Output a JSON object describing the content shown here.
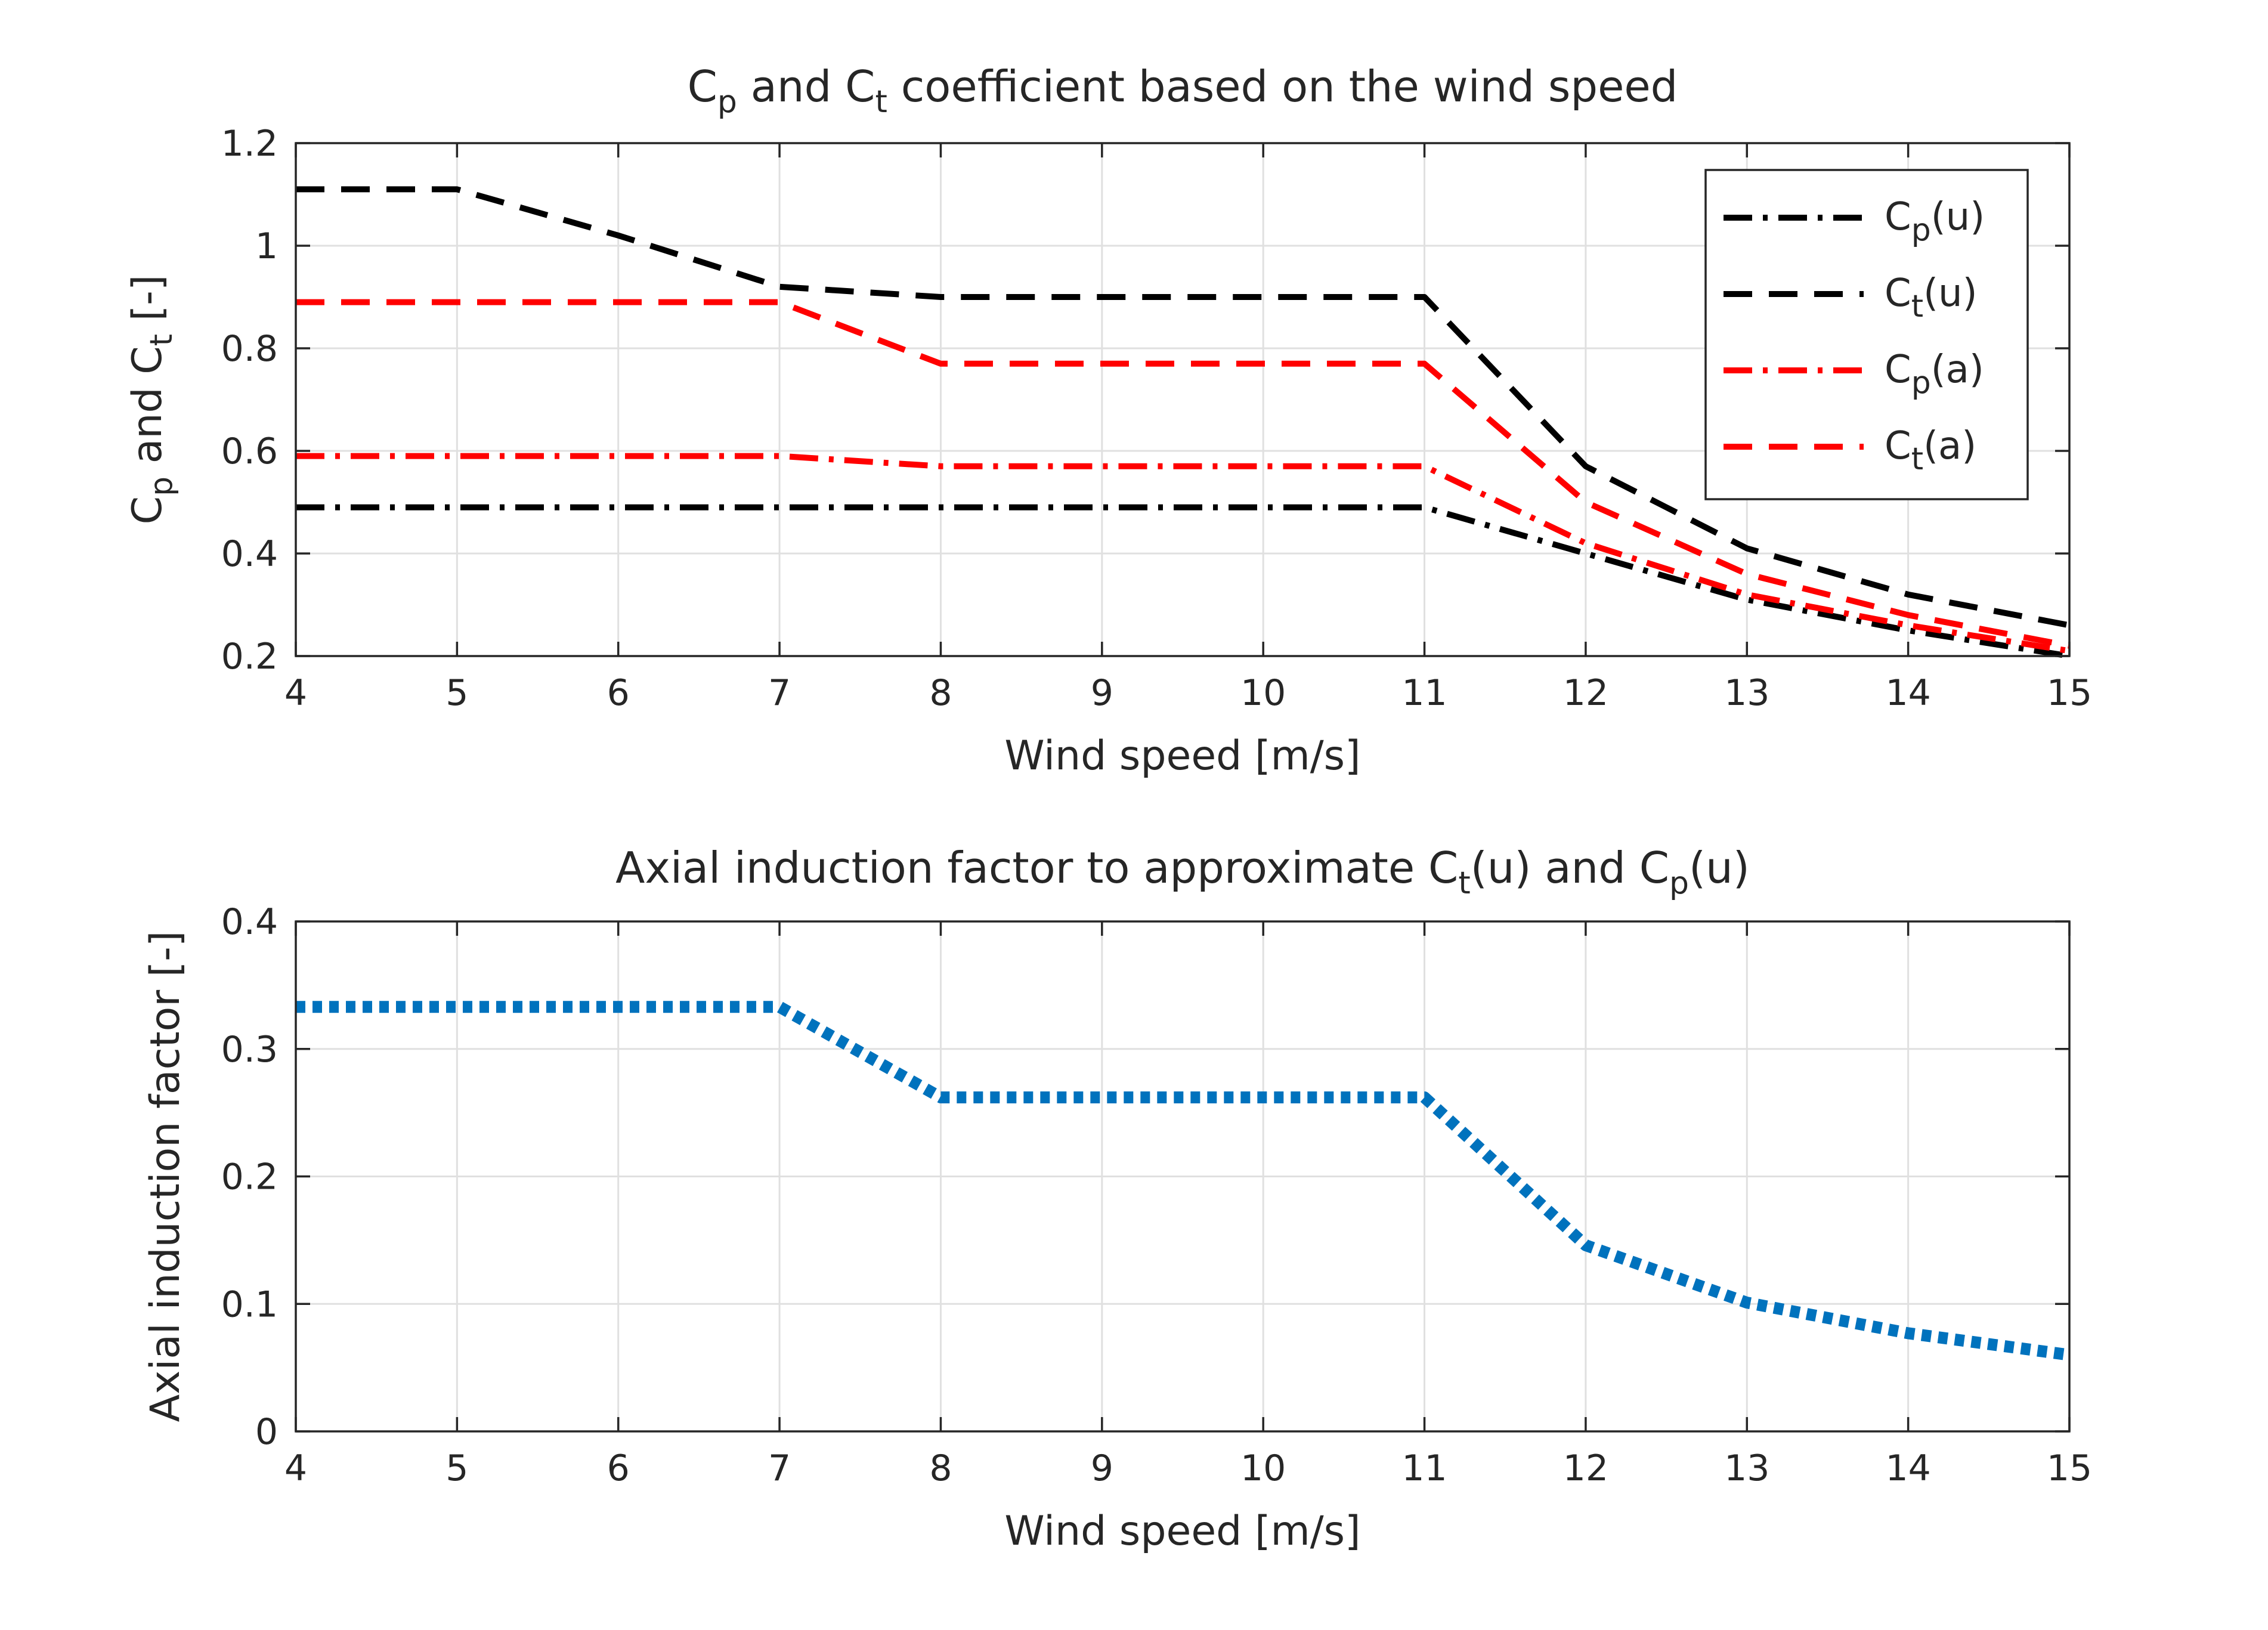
{
  "colors": {
    "black": "#000000",
    "red": "#ff0000",
    "blue": "#0072bd",
    "axis": "#262626",
    "grid": "#e0e0e0"
  },
  "chart_data": [
    {
      "type": "line",
      "title": {
        "pre": "C",
        "sub1": "p",
        "mid": " and C",
        "sub2": "t",
        "post": " coefficient based on the wind speed"
      },
      "xlabel": "Wind speed [m/s]",
      "ylabel": {
        "pre": "C",
        "sub1": "p",
        "mid": " and C",
        "sub2": "t",
        "post": " [-]"
      },
      "xlim": [
        4,
        15
      ],
      "ylim": [
        0.2,
        1.2
      ],
      "xticks": [
        "4",
        "5",
        "6",
        "7",
        "8",
        "9",
        "10",
        "11",
        "12",
        "13",
        "14",
        "15"
      ],
      "yticks": [
        "0.2",
        "0.4",
        "0.6",
        "0.8",
        "1",
        "1.2"
      ],
      "grid": true,
      "legend_position": "top-right",
      "x": [
        4,
        5,
        6,
        7,
        8,
        9,
        10,
        11,
        12,
        13,
        14,
        15
      ],
      "series": [
        {
          "name": "Cp(u)",
          "label": {
            "pre": "C",
            "sub": "p",
            "post": "(u)"
          },
          "color": "#000000",
          "style": "dashdot",
          "values": [
            0.49,
            0.49,
            0.49,
            0.49,
            0.49,
            0.49,
            0.49,
            0.49,
            0.4,
            0.31,
            0.25,
            0.2
          ]
        },
        {
          "name": "Ct(u)",
          "label": {
            "pre": "C",
            "sub": "t",
            "post": "(u)"
          },
          "color": "#000000",
          "style": "dashed",
          "values": [
            1.11,
            1.11,
            1.02,
            0.92,
            0.9,
            0.9,
            0.9,
            0.9,
            0.57,
            0.41,
            0.32,
            0.26
          ]
        },
        {
          "name": "Cp(a)",
          "label": {
            "pre": "C",
            "sub": "p",
            "post": "(a)"
          },
          "color": "#ff0000",
          "style": "dashdot",
          "values": [
            0.59,
            0.59,
            0.59,
            0.59,
            0.57,
            0.57,
            0.57,
            0.57,
            0.42,
            0.32,
            0.26,
            0.21
          ]
        },
        {
          "name": "Ct(a)",
          "label": {
            "pre": "C",
            "sub": "t",
            "post": "(a)"
          },
          "color": "#ff0000",
          "style": "dashed",
          "values": [
            0.89,
            0.89,
            0.89,
            0.89,
            0.77,
            0.77,
            0.77,
            0.77,
            0.5,
            0.36,
            0.28,
            0.22
          ]
        }
      ]
    },
    {
      "type": "line",
      "title": {
        "pre": "Axial induction factor to approximate C",
        "sub1": "t",
        "mid": "(u) and C",
        "sub2": "p",
        "post": "(u)"
      },
      "xlabel": "Wind speed [m/s]",
      "ylabel": {
        "pre": "Axial induction factor [-]",
        "sub1": "",
        "mid": "",
        "sub2": "",
        "post": ""
      },
      "xlim": [
        4,
        15
      ],
      "ylim": [
        0,
        0.4
      ],
      "xticks": [
        "4",
        "5",
        "6",
        "7",
        "8",
        "9",
        "10",
        "11",
        "12",
        "13",
        "14",
        "15"
      ],
      "yticks": [
        "0",
        "0.1",
        "0.2",
        "0.3",
        "0.4"
      ],
      "grid": true,
      "x": [
        4,
        5,
        6,
        7,
        8,
        9,
        10,
        11,
        12,
        13,
        14,
        15
      ],
      "series": [
        {
          "color": "#0072bd",
          "style": "dotted",
          "values": [
            0.333,
            0.333,
            0.333,
            0.333,
            0.262,
            0.262,
            0.262,
            0.262,
            0.146,
            0.101,
            0.077,
            0.06
          ]
        }
      ]
    }
  ]
}
